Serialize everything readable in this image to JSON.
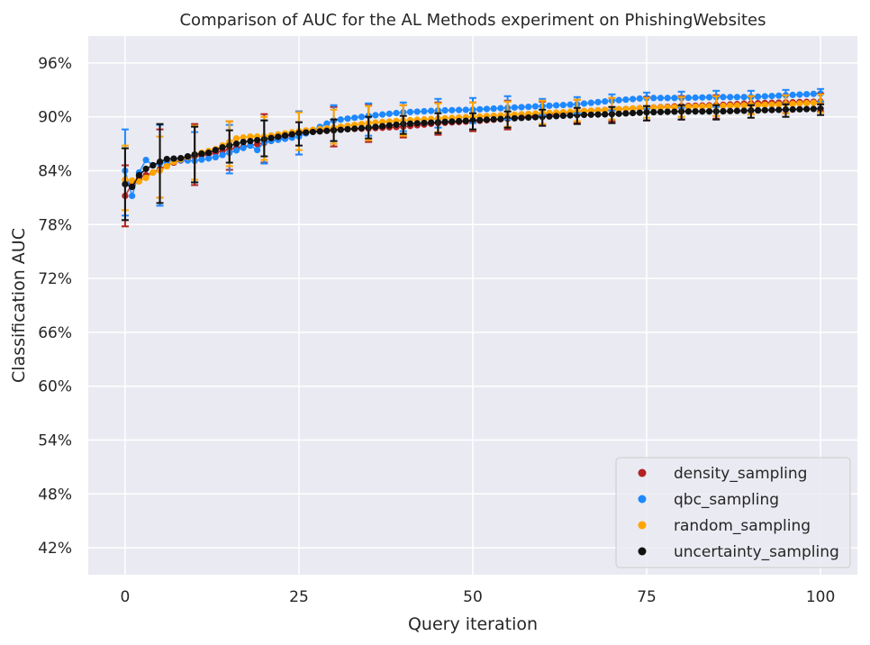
{
  "chart_data": {
    "type": "scatter",
    "title": "Comparison of AUC for the AL Methods experiment on PhishingWebsites",
    "xlabel": "Query iteration",
    "ylabel": "Classification AUC",
    "xlim": [
      -5.3,
      105.3
    ],
    "ylim": [
      0.39,
      0.99
    ],
    "xticks": [
      0,
      25,
      50,
      75,
      100
    ],
    "xtick_labels": [
      "0",
      "25",
      "50",
      "75",
      "100"
    ],
    "yticks": [
      0.42,
      0.48,
      0.54,
      0.6,
      0.66,
      0.72,
      0.78,
      0.84,
      0.9,
      0.96
    ],
    "ytick_labels": [
      "42%",
      "48%",
      "54%",
      "60%",
      "66%",
      "72%",
      "78%",
      "84%",
      "90%",
      "96%"
    ],
    "grid": true,
    "legend_position": "lower-right",
    "x_range": [
      0,
      100
    ],
    "series": [
      {
        "name": "density_sampling",
        "color": "#b22222",
        "anchors": [
          [
            0,
            0.812
          ],
          [
            1,
            0.825
          ],
          [
            2,
            0.832
          ],
          [
            3,
            0.835
          ],
          [
            4,
            0.838
          ],
          [
            5,
            0.842
          ],
          [
            7,
            0.849
          ],
          [
            10,
            0.856
          ],
          [
            12,
            0.858
          ],
          [
            15,
            0.864
          ],
          [
            18,
            0.868
          ],
          [
            20,
            0.871
          ],
          [
            25,
            0.882
          ],
          [
            30,
            0.886
          ],
          [
            35,
            0.887
          ],
          [
            40,
            0.889
          ],
          [
            45,
            0.893
          ],
          [
            50,
            0.895
          ],
          [
            55,
            0.898
          ],
          [
            60,
            0.902
          ],
          [
            65,
            0.906
          ],
          [
            70,
            0.908
          ],
          [
            75,
            0.91
          ],
          [
            80,
            0.912
          ],
          [
            85,
            0.913
          ],
          [
            90,
            0.915
          ],
          [
            95,
            0.916
          ],
          [
            100,
            0.917
          ]
        ],
        "errorbars": [
          [
            0,
            0.812,
            0.034
          ],
          [
            5,
            0.848,
            0.038
          ],
          [
            10,
            0.858,
            0.034
          ],
          [
            15,
            0.868,
            0.027
          ],
          [
            20,
            0.876,
            0.027
          ],
          [
            25,
            0.882,
            0.024
          ],
          [
            30,
            0.889,
            0.022
          ],
          [
            35,
            0.893,
            0.021
          ],
          [
            40,
            0.895,
            0.018
          ],
          [
            45,
            0.898,
            0.018
          ],
          [
            50,
            0.9,
            0.016
          ],
          [
            55,
            0.902,
            0.016
          ],
          [
            60,
            0.904,
            0.013
          ],
          [
            65,
            0.906,
            0.013
          ],
          [
            70,
            0.908,
            0.013
          ],
          [
            75,
            0.909,
            0.013
          ],
          [
            80,
            0.91,
            0.013
          ],
          [
            85,
            0.911,
            0.013
          ],
          [
            90,
            0.913,
            0.01
          ],
          [
            95,
            0.914,
            0.01
          ],
          [
            100,
            0.916,
            0.01
          ]
        ]
      },
      {
        "name": "qbc_sampling",
        "color": "#1e88ff",
        "anchors": [
          [
            0,
            0.84
          ],
          [
            1,
            0.812
          ],
          [
            2,
            0.838
          ],
          [
            3,
            0.852
          ],
          [
            4,
            0.846
          ],
          [
            5,
            0.848
          ],
          [
            7,
            0.852
          ],
          [
            10,
            0.851
          ],
          [
            13,
            0.855
          ],
          [
            15,
            0.86
          ],
          [
            18,
            0.868
          ],
          [
            19,
            0.863
          ],
          [
            20,
            0.872
          ],
          [
            25,
            0.878
          ],
          [
            30,
            0.896
          ],
          [
            35,
            0.901
          ],
          [
            40,
            0.905
          ],
          [
            45,
            0.907
          ],
          [
            50,
            0.908
          ],
          [
            55,
            0.91
          ],
          [
            60,
            0.912
          ],
          [
            65,
            0.914
          ],
          [
            70,
            0.918
          ],
          [
            75,
            0.921
          ],
          [
            80,
            0.921
          ],
          [
            85,
            0.922
          ],
          [
            90,
            0.922
          ],
          [
            95,
            0.924
          ],
          [
            100,
            0.926
          ]
        ],
        "errorbars": [
          [
            0,
            0.838,
            0.048
          ],
          [
            5,
            0.846,
            0.045
          ],
          [
            10,
            0.855,
            0.028
          ],
          [
            15,
            0.864,
            0.027
          ],
          [
            20,
            0.872,
            0.024
          ],
          [
            25,
            0.882,
            0.024
          ],
          [
            30,
            0.893,
            0.02
          ],
          [
            35,
            0.897,
            0.018
          ],
          [
            40,
            0.9,
            0.016
          ],
          [
            45,
            0.904,
            0.016
          ],
          [
            50,
            0.907,
            0.014
          ],
          [
            55,
            0.91,
            0.013
          ],
          [
            60,
            0.911,
            0.009
          ],
          [
            65,
            0.913,
            0.009
          ],
          [
            70,
            0.916,
            0.009
          ],
          [
            75,
            0.918,
            0.009
          ],
          [
            80,
            0.919,
            0.009
          ],
          [
            85,
            0.92,
            0.009
          ],
          [
            90,
            0.921,
            0.008
          ],
          [
            95,
            0.922,
            0.008
          ],
          [
            100,
            0.924,
            0.007
          ]
        ]
      },
      {
        "name": "random_sampling",
        "color": "#ffa500",
        "anchors": [
          [
            0,
            0.83
          ],
          [
            2,
            0.828
          ],
          [
            3,
            0.832
          ],
          [
            4,
            0.838
          ],
          [
            5,
            0.84
          ],
          [
            7,
            0.85
          ],
          [
            10,
            0.858
          ],
          [
            13,
            0.864
          ],
          [
            16,
            0.876
          ],
          [
            18,
            0.878
          ],
          [
            20,
            0.878
          ],
          [
            25,
            0.884
          ],
          [
            30,
            0.888
          ],
          [
            35,
            0.893
          ],
          [
            40,
            0.896
          ],
          [
            45,
            0.898
          ],
          [
            50,
            0.9
          ],
          [
            55,
            0.902
          ],
          [
            60,
            0.904
          ],
          [
            65,
            0.906
          ],
          [
            70,
            0.908
          ],
          [
            75,
            0.91
          ],
          [
            80,
            0.911
          ],
          [
            85,
            0.912
          ],
          [
            90,
            0.913
          ],
          [
            95,
            0.914
          ],
          [
            100,
            0.916
          ]
        ],
        "errorbars": [
          [
            0,
            0.832,
            0.036
          ],
          [
            5,
            0.844,
            0.034
          ],
          [
            10,
            0.86,
            0.03
          ],
          [
            15,
            0.87,
            0.025
          ],
          [
            20,
            0.876,
            0.024
          ],
          [
            25,
            0.884,
            0.021
          ],
          [
            30,
            0.889,
            0.019
          ],
          [
            35,
            0.893,
            0.019
          ],
          [
            40,
            0.896,
            0.017
          ],
          [
            45,
            0.899,
            0.016
          ],
          [
            50,
            0.901,
            0.015
          ],
          [
            55,
            0.903,
            0.014
          ],
          [
            60,
            0.905,
            0.013
          ],
          [
            65,
            0.907,
            0.012
          ],
          [
            70,
            0.909,
            0.012
          ],
          [
            75,
            0.91,
            0.011
          ],
          [
            80,
            0.911,
            0.011
          ],
          [
            85,
            0.912,
            0.011
          ],
          [
            90,
            0.913,
            0.01
          ],
          [
            95,
            0.914,
            0.01
          ],
          [
            100,
            0.915,
            0.01
          ]
        ]
      },
      {
        "name": "uncertainty_sampling",
        "color": "#111111",
        "anchors": [
          [
            0,
            0.825
          ],
          [
            1,
            0.822
          ],
          [
            2,
            0.835
          ],
          [
            3,
            0.842
          ],
          [
            4,
            0.846
          ],
          [
            5,
            0.85
          ],
          [
            6,
            0.853
          ],
          [
            8,
            0.854
          ],
          [
            10,
            0.858
          ],
          [
            12,
            0.86
          ],
          [
            14,
            0.866
          ],
          [
            17,
            0.872
          ],
          [
            20,
            0.875
          ],
          [
            25,
            0.882
          ],
          [
            30,
            0.885
          ],
          [
            35,
            0.888
          ],
          [
            40,
            0.892
          ],
          [
            45,
            0.894
          ],
          [
            50,
            0.896
          ],
          [
            55,
            0.898
          ],
          [
            60,
            0.9
          ],
          [
            65,
            0.902
          ],
          [
            70,
            0.903
          ],
          [
            75,
            0.905
          ],
          [
            80,
            0.906
          ],
          [
            85,
            0.906
          ],
          [
            90,
            0.907
          ],
          [
            95,
            0.908
          ],
          [
            100,
            0.909
          ]
        ],
        "errorbars": [
          [
            0,
            0.825,
            0.04
          ],
          [
            5,
            0.848,
            0.044
          ],
          [
            10,
            0.858,
            0.031
          ],
          [
            15,
            0.867,
            0.018
          ],
          [
            20,
            0.876,
            0.02
          ],
          [
            25,
            0.881,
            0.013
          ],
          [
            30,
            0.885,
            0.012
          ],
          [
            35,
            0.888,
            0.012
          ],
          [
            40,
            0.891,
            0.01
          ],
          [
            45,
            0.893,
            0.011
          ],
          [
            50,
            0.895,
            0.009
          ],
          [
            55,
            0.897,
            0.009
          ],
          [
            60,
            0.899,
            0.009
          ],
          [
            65,
            0.901,
            0.009
          ],
          [
            70,
            0.902,
            0.009
          ],
          [
            75,
            0.904,
            0.008
          ],
          [
            80,
            0.905,
            0.008
          ],
          [
            85,
            0.905,
            0.008
          ],
          [
            90,
            0.906,
            0.007
          ],
          [
            95,
            0.907,
            0.007
          ],
          [
            100,
            0.908,
            0.006
          ]
        ]
      }
    ]
  }
}
